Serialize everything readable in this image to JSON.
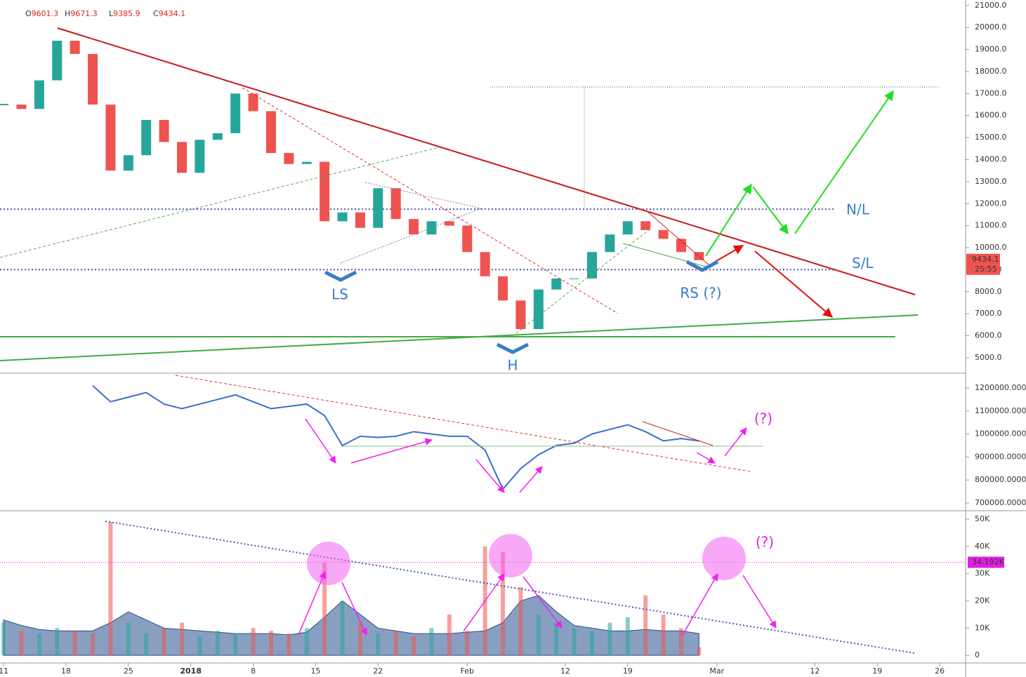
{
  "chart_data": {
    "type": "candlestick",
    "ohlc": [
      {
        "label": "O",
        "value": 9601.3
      },
      {
        "label": "H",
        "value": 9671.3
      },
      {
        "label": "L",
        "value": 9385.9
      },
      {
        "label": "C",
        "value": 9434.1
      }
    ],
    "countdown": "25:55",
    "x": [
      0,
      2,
      4,
      6,
      8,
      10,
      12,
      14,
      16,
      18,
      20,
      22,
      24,
      26,
      28,
      30,
      32,
      34,
      36,
      38,
      40,
      42,
      44,
      46,
      48,
      50,
      52,
      54,
      56,
      58,
      60,
      62,
      64,
      66,
      68,
      70,
      72,
      74,
      76,
      78
    ],
    "xlim": [
      -0.4,
      107.9
    ],
    "xticks": [
      {
        "value": 0,
        "label": "11"
      },
      {
        "value": 7,
        "label": "18"
      },
      {
        "value": 14,
        "label": "25"
      },
      {
        "value": 21,
        "label": "2018"
      },
      {
        "value": 28,
        "label": "8"
      },
      {
        "value": 35,
        "label": "15"
      },
      {
        "value": 42,
        "label": "22"
      },
      {
        "value": 52,
        "label": "Feb"
      },
      {
        "value": 63,
        "label": "12"
      },
      {
        "value": 70,
        "label": "19"
      },
      {
        "value": 80,
        "label": "Mar"
      },
      {
        "value": 91,
        "label": "12"
      },
      {
        "value": 98,
        "label": "19"
      },
      {
        "value": 105,
        "label": "26"
      }
    ],
    "close": [
      16500,
      16300,
      17600,
      19400,
      18800,
      16500,
      13500,
      14200,
      15800,
      14800,
      13400,
      14900,
      15200,
      17000,
      16200,
      14300,
      13800,
      13900,
      11200,
      11600,
      10900,
      12700,
      11300,
      10600,
      11200,
      11000,
      9800,
      8700,
      7600,
      6300,
      8100,
      8600,
      8600,
      9800,
      10600,
      11200,
      10800,
      10400,
      9800,
      9434.1
    ],
    "up_color": "#26a69a",
    "down_color": "#ef5350",
    "ylim": [
      4360,
      21250
    ],
    "yticks": [
      {
        "value": 5000,
        "label": "5000.0"
      },
      {
        "value": 6000,
        "label": "6000.0"
      },
      {
        "value": 7000,
        "label": "7000.0"
      },
      {
        "value": 8000,
        "label": "8000.0"
      },
      {
        "value": 9000,
        "label": "9000.0"
      },
      {
        "value": 10000,
        "label": "10000.0"
      },
      {
        "value": 11000,
        "label": "11000.0"
      },
      {
        "value": 12000,
        "label": "12000.0"
      },
      {
        "value": 13000,
        "label": "13000.0"
      },
      {
        "value": 14000,
        "label": "14000.0"
      },
      {
        "value": 15000,
        "label": "15000.0"
      },
      {
        "value": 16000,
        "label": "16000.0"
      },
      {
        "value": 17000,
        "label": "17000.0"
      },
      {
        "value": 18000,
        "label": "18000.0"
      },
      {
        "value": 19000,
        "label": "19000.0"
      },
      {
        "value": 20000,
        "label": "20000.0"
      },
      {
        "value": 21000,
        "label": "21000.0"
      }
    ],
    "levels": [
      {
        "name": "N/L",
        "value": 11750
      },
      {
        "name": "S/L",
        "value": 9000
      }
    ],
    "annotations": {
      "ls": "LS",
      "h": "H",
      "rs": "RS (?)",
      "q1": "(?)",
      "q2": "(?)"
    },
    "obv_x": [
      10,
      12,
      14,
      16,
      18,
      20,
      22,
      24,
      26,
      28,
      30,
      32,
      34,
      36,
      38,
      40,
      42,
      44,
      46,
      48,
      50,
      52,
      54,
      56,
      58,
      60,
      62,
      64,
      66,
      68,
      70,
      72,
      74,
      76,
      78
    ],
    "obv": [
      1210000,
      1140000,
      1160000,
      1180000,
      1130000,
      1110000,
      1130000,
      1150000,
      1170000,
      1140000,
      1110000,
      1120000,
      1130000,
      1080000,
      950000,
      990000,
      985000,
      990000,
      1010000,
      1000000,
      990000,
      990000,
      930000,
      760000,
      850000,
      910000,
      950000,
      960000,
      1000000,
      1020000,
      1040000,
      1010000,
      970000,
      980000,
      970000
    ],
    "obv_color": "#3a6fc9",
    "y2lim": [
      666500,
      1254900
    ],
    "y2ticks": [
      {
        "value": 700000,
        "label": "700000.0000"
      },
      {
        "value": 800000,
        "label": "800000.0000"
      },
      {
        "value": 900000,
        "label": "900000.0000"
      },
      {
        "value": 1000000,
        "label": "1000000.0000"
      },
      {
        "value": 1100000,
        "label": "1100000.0000"
      },
      {
        "value": 1200000,
        "label": "1200000.0000"
      }
    ],
    "volume": [
      12000,
      9000,
      8000,
      10000,
      9000,
      8000,
      49000,
      12000,
      8000,
      10000,
      12000,
      7000,
      9000,
      8000,
      10000,
      9000,
      8000,
      10000,
      34000,
      20000,
      12000,
      8000,
      9000,
      7000,
      10000,
      15000,
      9000,
      40000,
      38000,
      25000,
      15000,
      12000,
      10000,
      9000,
      12000,
      14000,
      22000,
      15000,
      10000,
      3000
    ],
    "volume_ma": [
      13000,
      11000,
      9500,
      9000,
      9000,
      9000,
      12000,
      16000,
      13000,
      10000,
      9500,
      9000,
      8500,
      8000,
      8000,
      8000,
      7500,
      8500,
      14000,
      20000,
      15000,
      10000,
      9000,
      8000,
      8000,
      8000,
      8500,
      9000,
      12000,
      20000,
      22000,
      16000,
      11000,
      10000,
      9000,
      9000,
      9500,
      9000,
      9000,
      8000
    ],
    "volume_level": {
      "value": 34192,
      "label": "34.192K"
    },
    "y3lim": [
      -2800,
      52600
    ],
    "y3ticks": [
      0,
      {
        "value": 10000,
        "label": "10K"
      },
      {
        "value": 20000,
        "label": "20K"
      },
      {
        "value": 30000,
        "label": "30K"
      },
      {
        "value": 40000,
        "label": "40K"
      },
      {
        "value": 50000,
        "label": "50K"
      }
    ]
  }
}
